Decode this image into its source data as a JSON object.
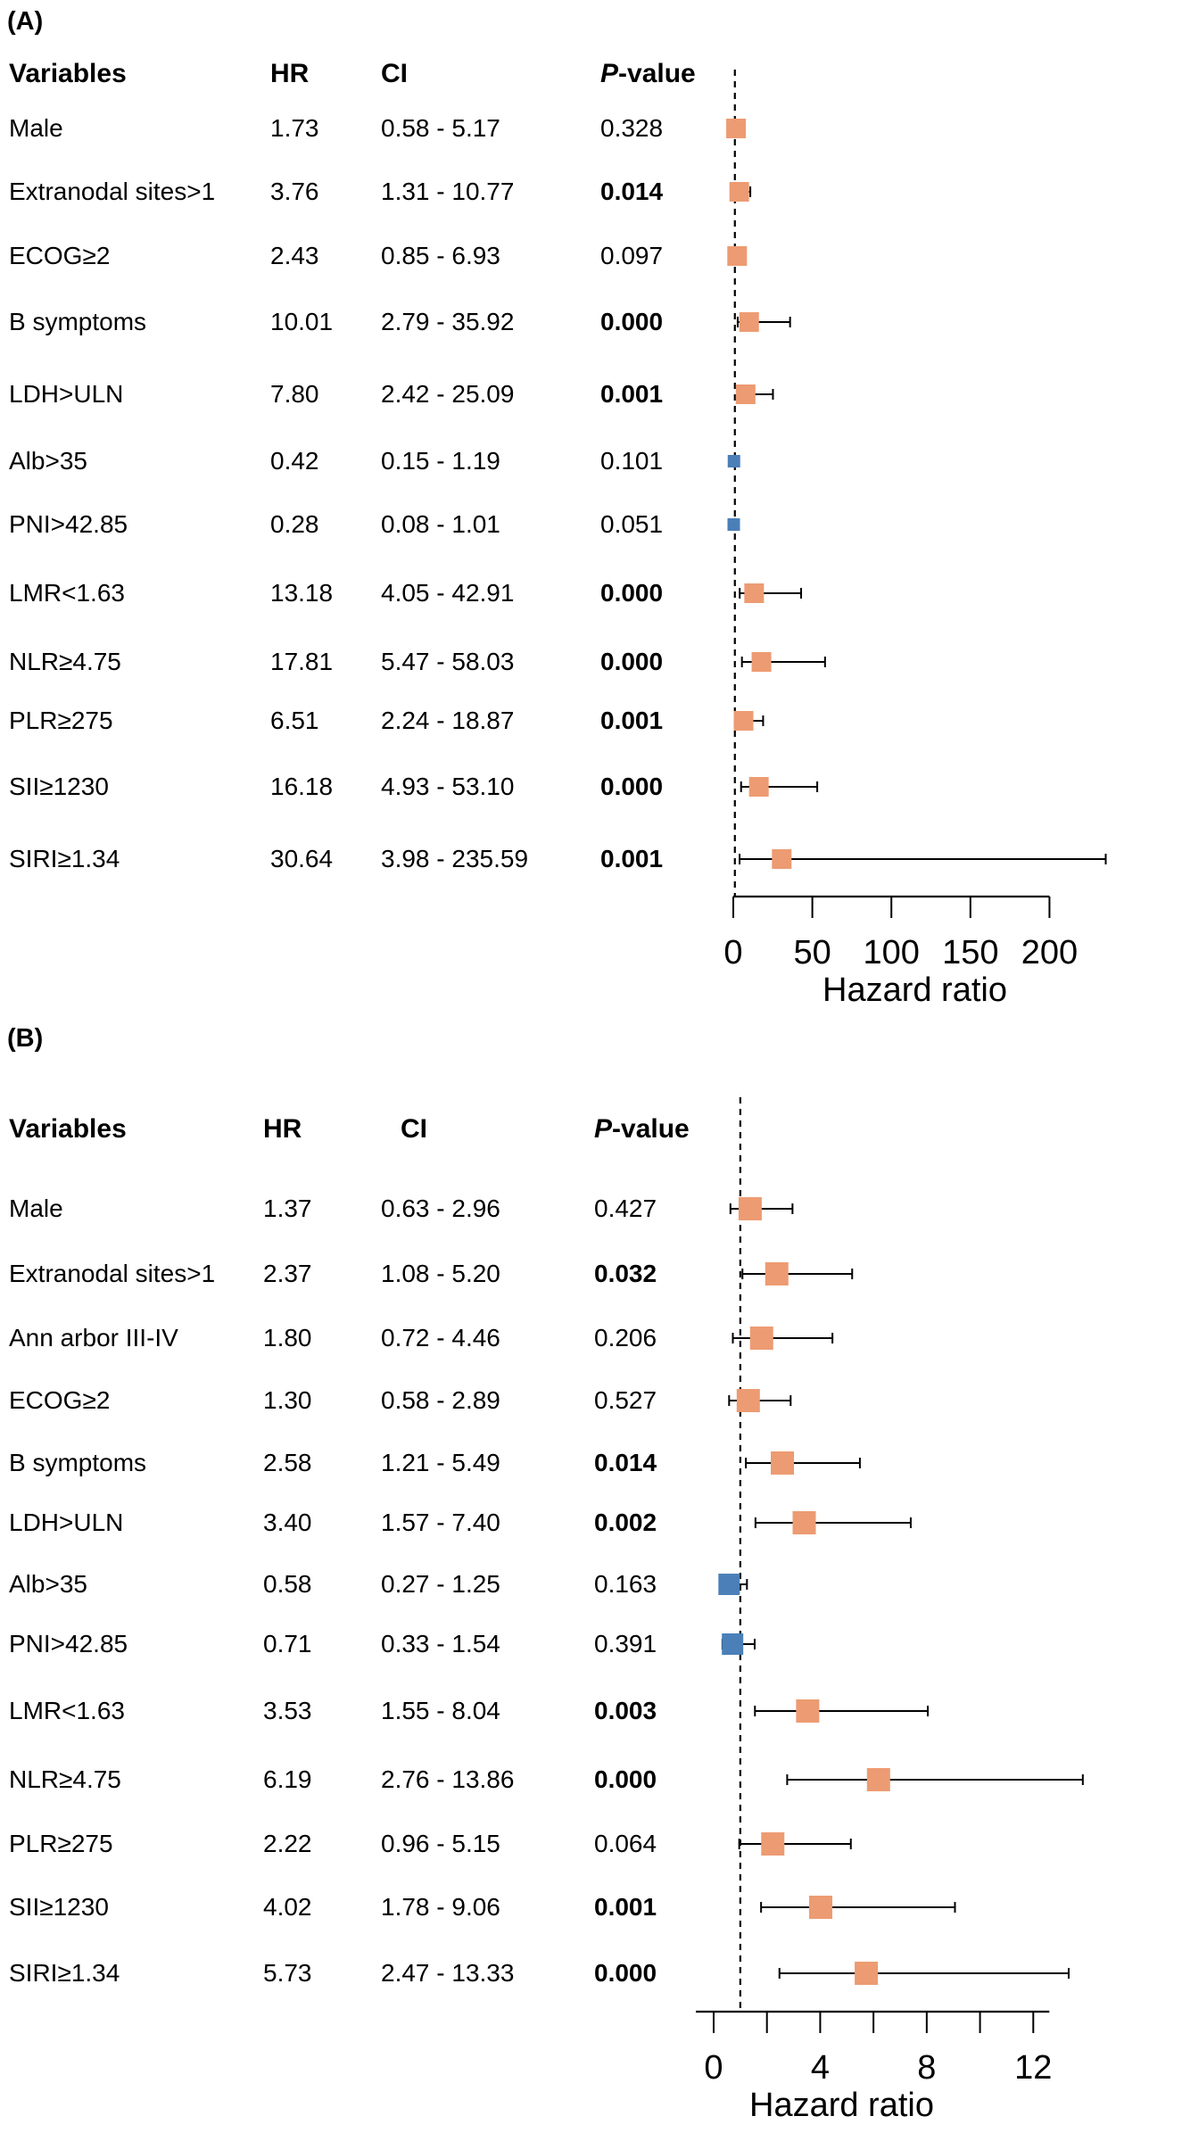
{
  "colors": {
    "risk": "#ED9B72",
    "protective": "#4A7FB8",
    "line": "#000000"
  },
  "chart_data": [
    {
      "type": "forest",
      "panel_label": "(A)",
      "headers": {
        "variables": "Variables",
        "hr": "HR",
        "ci": "CI",
        "p_prefix": "P",
        "p_suffix": "-value"
      },
      "xlabel": "Hazard ratio",
      "xticks": [
        0,
        50,
        100,
        150,
        200
      ],
      "xlim": [
        0,
        237
      ],
      "reference_line": 1,
      "rows": [
        {
          "label": "Male",
          "hr_text": "1.73",
          "ci_text": "0.58 - 5.17",
          "p_text": "0.328",
          "p_bold": false,
          "hr": 1.73,
          "lo": 0.58,
          "hi": 5.17
        },
        {
          "label": "Extranodal sites>1",
          "hr_text": "3.76",
          "ci_text": "1.31 - 10.77",
          "p_text": "0.014",
          "p_bold": true,
          "hr": 3.76,
          "lo": 1.31,
          "hi": 10.77
        },
        {
          "label": "ECOG≥2",
          "hr_text": "2.43",
          "ci_text": "0.85 - 6.93",
          "p_text": "0.097",
          "p_bold": false,
          "hr": 2.43,
          "lo": 0.85,
          "hi": 6.93
        },
        {
          "label": "B symptoms",
          "hr_text": "10.01",
          "ci_text": "2.79 - 35.92",
          "p_text": "0.000",
          "p_bold": true,
          "hr": 10.01,
          "lo": 2.79,
          "hi": 35.92
        },
        {
          "label": "LDH>ULN",
          "hr_text": "7.80",
          "ci_text": "2.42 - 25.09",
          "p_text": "0.001",
          "p_bold": true,
          "hr": 7.8,
          "lo": 2.42,
          "hi": 25.09
        },
        {
          "label": "Alb>35",
          "hr_text": "0.42",
          "ci_text": "0.15 - 1.19",
          "p_text": "0.101",
          "p_bold": false,
          "hr": 0.42,
          "lo": 0.15,
          "hi": 1.19
        },
        {
          "label": "PNI>42.85",
          "hr_text": "0.28",
          "ci_text": "0.08 - 1.01",
          "p_text": "0.051",
          "p_bold": false,
          "hr": 0.28,
          "lo": 0.08,
          "hi": 1.01
        },
        {
          "label": "LMR<1.63",
          "hr_text": "13.18",
          "ci_text": "4.05 - 42.91",
          "p_text": "0.000",
          "p_bold": true,
          "hr": 13.18,
          "lo": 4.05,
          "hi": 42.91
        },
        {
          "label": "NLR≥4.75",
          "hr_text": "17.81",
          "ci_text": "5.47 - 58.03",
          "p_text": "0.000",
          "p_bold": true,
          "hr": 17.81,
          "lo": 5.47,
          "hi": 58.03
        },
        {
          "label": "PLR≥275",
          "hr_text": "6.51",
          "ci_text": "2.24 - 18.87",
          "p_text": "0.001",
          "p_bold": true,
          "hr": 6.51,
          "lo": 2.24,
          "hi": 18.87
        },
        {
          "label": "SII≥1230",
          "hr_text": "16.18",
          "ci_text": "4.93 - 53.10",
          "p_text": "0.000",
          "p_bold": true,
          "hr": 16.18,
          "lo": 4.93,
          "hi": 53.1
        },
        {
          "label": "SIRI≥1.34",
          "hr_text": "30.64",
          "ci_text": "3.98 - 235.59",
          "p_text": "0.001",
          "p_bold": true,
          "hr": 30.64,
          "lo": 3.98,
          "hi": 235.59
        }
      ]
    },
    {
      "type": "forest",
      "panel_label": "(B)",
      "headers": {
        "variables": "Variables",
        "hr": "HR",
        "ci": "CI",
        "p_prefix": "P",
        "p_suffix": "-value"
      },
      "xlabel": "Hazard ratio",
      "xticks": [
        0,
        4,
        8,
        12
      ],
      "xlim": [
        0,
        14
      ],
      "reference_line": 1,
      "rows": [
        {
          "label": "Male",
          "hr_text": "1.37",
          "ci_text": "0.63 - 2.96",
          "p_text": "0.427",
          "p_bold": false,
          "hr": 1.37,
          "lo": 0.63,
          "hi": 2.96
        },
        {
          "label": "Extranodal sites>1",
          "hr_text": "2.37",
          "ci_text": "1.08 - 5.20",
          "p_text": "0.032",
          "p_bold": true,
          "hr": 2.37,
          "lo": 1.08,
          "hi": 5.2
        },
        {
          "label": "Ann arbor III-IV",
          "hr_text": "1.80",
          "ci_text": "0.72 - 4.46",
          "p_text": "0.206",
          "p_bold": false,
          "hr": 1.8,
          "lo": 0.72,
          "hi": 4.46
        },
        {
          "label": "ECOG≥2",
          "hr_text": "1.30",
          "ci_text": "0.58 - 2.89",
          "p_text": "0.527",
          "p_bold": false,
          "hr": 1.3,
          "lo": 0.58,
          "hi": 2.89
        },
        {
          "label": "B symptoms",
          "hr_text": "2.58",
          "ci_text": "1.21 - 5.49",
          "p_text": "0.014",
          "p_bold": true,
          "hr": 2.58,
          "lo": 1.21,
          "hi": 5.49
        },
        {
          "label": "LDH>ULN",
          "hr_text": "3.40",
          "ci_text": "1.57 - 7.40",
          "p_text": "0.002",
          "p_bold": true,
          "hr": 3.4,
          "lo": 1.57,
          "hi": 7.4
        },
        {
          "label": "Alb>35",
          "hr_text": "0.58",
          "ci_text": "0.27 - 1.25",
          "p_text": "0.163",
          "p_bold": false,
          "hr": 0.58,
          "lo": 0.27,
          "hi": 1.25
        },
        {
          "label": "PNI>42.85",
          "hr_text": "0.71",
          "ci_text": "0.33 - 1.54",
          "p_text": "0.391",
          "p_bold": false,
          "hr": 0.71,
          "lo": 0.33,
          "hi": 1.54
        },
        {
          "label": "LMR<1.63",
          "hr_text": "3.53",
          "ci_text": "1.55 - 8.04",
          "p_text": "0.003",
          "p_bold": true,
          "hr": 3.53,
          "lo": 1.55,
          "hi": 8.04
        },
        {
          "label": "NLR≥4.75",
          "hr_text": "6.19",
          "ci_text": "2.76 - 13.86",
          "p_text": "0.000",
          "p_bold": true,
          "hr": 6.19,
          "lo": 2.76,
          "hi": 13.86
        },
        {
          "label": "PLR≥275",
          "hr_text": "2.22",
          "ci_text": "0.96 - 5.15",
          "p_text": "0.064",
          "p_bold": false,
          "hr": 2.22,
          "lo": 0.96,
          "hi": 5.15
        },
        {
          "label": "SII≥1230",
          "hr_text": "4.02",
          "ci_text": "1.78 - 9.06",
          "p_text": "0.001",
          "p_bold": true,
          "hr": 4.02,
          "lo": 1.78,
          "hi": 9.06
        },
        {
          "label": "SIRI≥1.34",
          "hr_text": "5.73",
          "ci_text": "2.47 - 13.33",
          "p_text": "0.000",
          "p_bold": true,
          "hr": 5.73,
          "lo": 2.47,
          "hi": 13.33
        }
      ]
    }
  ]
}
